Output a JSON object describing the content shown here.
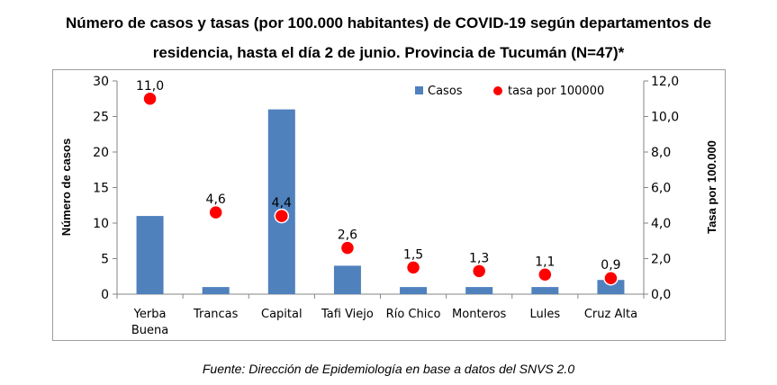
{
  "title_line1": "Número de casos y tasas (por 100.000 habitantes) de COVID-19 según departamentos de",
  "title_line2": "residencia, hasta el día 2 de junio. Provincia de Tucumán (N=47)*",
  "source": "Fuente: Dirección de Epidemiología en base a datos del SNVS 2.0",
  "colors": {
    "bar": "#4f81bd",
    "dot": "#ff0000",
    "dot_stroke": "#ffffff",
    "axis": "#868686"
  },
  "chart_data": {
    "type": "bar",
    "categories": [
      "Yerba Buena",
      "Trancas",
      "Capital",
      "Tafi Viejo",
      "Río Chico",
      "Monteros",
      "Lules",
      "Cruz Alta"
    ],
    "category_lines": [
      [
        "Yerba",
        "Buena"
      ],
      [
        "Trancas"
      ],
      [
        "Capital"
      ],
      [
        "Tafi Viejo"
      ],
      [
        "Río Chico"
      ],
      [
        "Monteros"
      ],
      [
        "Lules"
      ],
      [
        "Cruz Alta"
      ]
    ],
    "series": [
      {
        "name": "Casos",
        "type": "bar",
        "axis": "left",
        "values": [
          11,
          1,
          26,
          4,
          1,
          1,
          1,
          2
        ]
      },
      {
        "name": "tasa por 100000",
        "type": "scatter",
        "axis": "right",
        "values": [
          11.0,
          4.6,
          4.4,
          2.6,
          1.5,
          1.3,
          1.1,
          0.9
        ],
        "labels": [
          "11,0",
          "4,6",
          "4,4",
          "2,6",
          "1,5",
          "1,3",
          "1,1",
          "0,9"
        ]
      }
    ],
    "ylabel": "Número de casos",
    "y2label": "Tasa por 100.000",
    "ylim": [
      0,
      30
    ],
    "y2lim": [
      0,
      12
    ],
    "yticks": [
      "0",
      "5",
      "10",
      "15",
      "20",
      "25",
      "30"
    ],
    "y2ticks": [
      "0,0",
      "2,0",
      "4,0",
      "6,0",
      "8,0",
      "10,0",
      "12,0"
    ],
    "legend": "top-right",
    "grid": false
  }
}
